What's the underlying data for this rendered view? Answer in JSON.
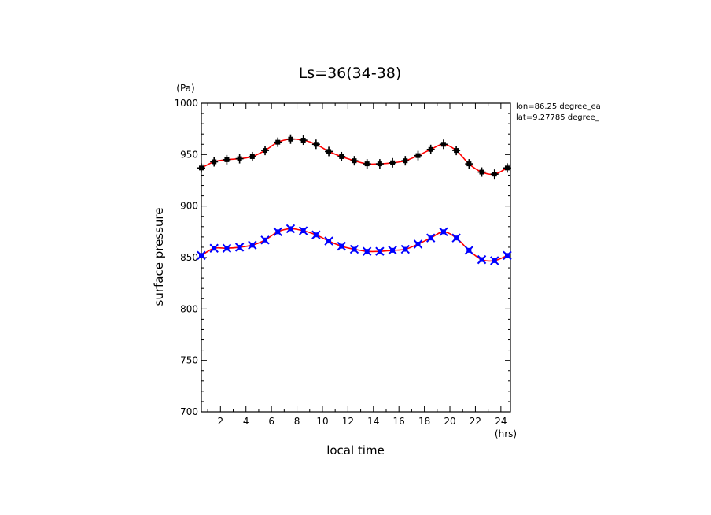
{
  "chart_data": {
    "type": "line",
    "title": "Ls=36(34-38)",
    "xlabel": "local time",
    "ylabel": "surface pressure",
    "x_unit": "(hrs)",
    "y_unit": "(Pa)",
    "xlim": [
      0.5,
      24.75
    ],
    "ylim": [
      700,
      1000
    ],
    "xticks": [
      2,
      4,
      6,
      8,
      10,
      12,
      14,
      16,
      18,
      20,
      22,
      24
    ],
    "yticks": [
      700,
      750,
      800,
      850,
      900,
      950,
      1000
    ],
    "annotations": [
      "lon=86.25 degree_ea",
      "lat=9.27785 degree_"
    ],
    "grid": false,
    "x": [
      0.5,
      1.5,
      2.5,
      3.5,
      4.5,
      5.5,
      6.5,
      7.5,
      8.5,
      9.5,
      10.5,
      11.5,
      12.5,
      13.5,
      14.5,
      15.5,
      16.5,
      17.5,
      18.5,
      19.5,
      20.5,
      21.5,
      22.5,
      23.5,
      24.5
    ],
    "series": [
      {
        "color": "#000000",
        "marker": "plus",
        "curve_color": "#ff0000",
        "values": [
          937,
          943,
          945,
          946,
          948,
          954,
          962,
          965,
          964,
          960,
          953,
          948,
          944,
          941,
          941,
          942,
          944,
          949,
          955,
          960,
          954,
          941,
          933,
          931,
          937
        ]
      },
      {
        "color": "#0000ff",
        "marker": "cross",
        "curve_color": "#ff0000",
        "values": [
          852,
          859,
          859,
          860,
          862,
          867,
          875,
          878,
          876,
          872,
          866,
          861,
          858,
          856,
          856,
          857,
          858,
          863,
          869,
          875,
          869,
          857,
          848,
          847,
          852
        ]
      }
    ]
  }
}
